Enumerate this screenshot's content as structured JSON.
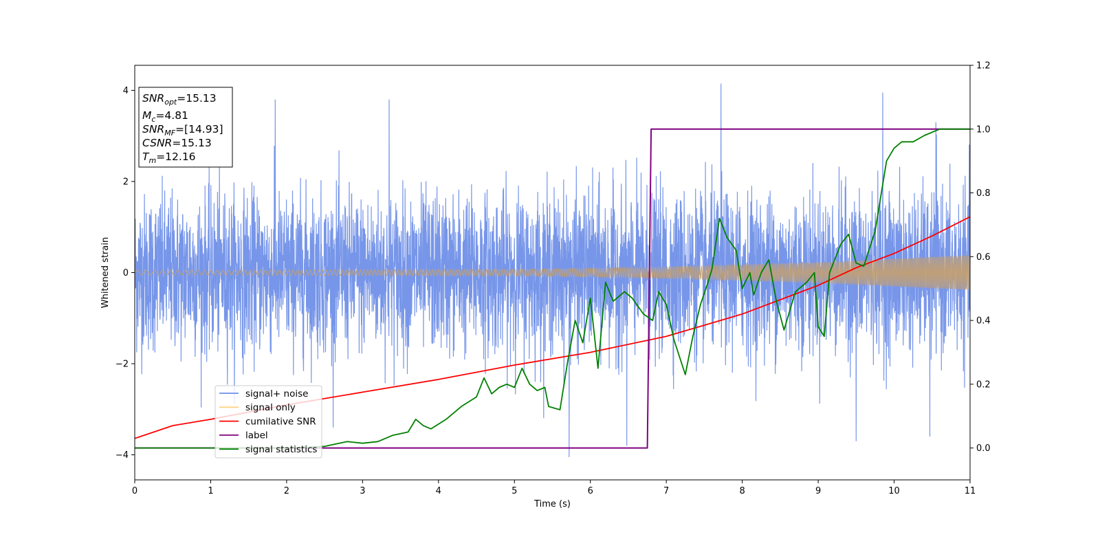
{
  "chart_data": {
    "type": "line",
    "xlabel": "Time (s)",
    "ylabel": "Whitened strain",
    "xlim": [
      0,
      11
    ],
    "ylim_left": [
      -4.55,
      4.55
    ],
    "ylim_right": [
      -0.1,
      1.2
    ],
    "x_ticks": [
      "0",
      "1",
      "2",
      "3",
      "4",
      "5",
      "6",
      "7",
      "8",
      "9",
      "10",
      "11"
    ],
    "y_left_ticks": [
      "−4",
      "−2",
      "0",
      "2",
      "4"
    ],
    "y_right_ticks": [
      "0.0",
      "0.2",
      "0.4",
      "0.6",
      "0.8",
      "1.0",
      "1.2"
    ],
    "legend_position": "lower-left",
    "legend": [
      {
        "name": "signal+ noise",
        "color": "#7090e8"
      },
      {
        "name": "signal only",
        "color": "#ffd382"
      },
      {
        "name": "cumilative SNR",
        "color": "#ff0000"
      },
      {
        "name": "label",
        "color": "#800080"
      },
      {
        "name": "signal statistics",
        "color": "#008000"
      }
    ],
    "info_box": {
      "snr_opt_main": "SNR",
      "snr_opt_sub": "opt",
      "snr_opt_val": "=15.13",
      "mc_main": "M",
      "mc_sub": "c",
      "mc_val": "=4.81",
      "snr_mf_main": "SNR",
      "snr_mf_sub": "MF",
      "snr_mf_val": "=[14.93]",
      "csnr_main": "CSNR",
      "csnr_val": "=15.13",
      "tm_main": "T",
      "tm_sub": "m",
      "tm_val": "=12.16"
    },
    "series": [
      {
        "name": "signal+ noise",
        "axis": "left",
        "description": "whitened noisy strain, roughly ±1.5 envelope with spikes to about ±4",
        "x_range": [
          0,
          11
        ],
        "approx_std": 0.85,
        "peak_positive": [
          [
            1.85,
            3.8
          ],
          [
            3.35,
            3.8
          ],
          [
            7.72,
            4.15
          ],
          [
            9.85,
            3.95
          ],
          [
            10.55,
            3.3
          ]
        ],
        "peak_negative": [
          [
            5.72,
            -4.05
          ],
          [
            6.48,
            -3.8
          ],
          [
            9.5,
            -3.7
          ],
          [
            10.47,
            -3.6
          ]
        ]
      },
      {
        "name": "signal only",
        "axis": "left",
        "description": "chirp with slowly growing amplitude",
        "amplitude_points": [
          [
            0,
            0.05
          ],
          [
            5,
            0.07
          ],
          [
            7,
            0.12
          ],
          [
            9,
            0.22
          ],
          [
            10,
            0.3
          ],
          [
            11,
            0.38
          ]
        ]
      },
      {
        "name": "cumilative SNR",
        "axis": "right",
        "points": [
          [
            0,
            0.03
          ],
          [
            0.5,
            0.07
          ],
          [
            1,
            0.09
          ],
          [
            2,
            0.135
          ],
          [
            3,
            0.175
          ],
          [
            4,
            0.215
          ],
          [
            5,
            0.26
          ],
          [
            6,
            0.3
          ],
          [
            7,
            0.35
          ],
          [
            8,
            0.42
          ],
          [
            9,
            0.51
          ],
          [
            9.5,
            0.565
          ],
          [
            10,
            0.61
          ],
          [
            10.5,
            0.665
          ],
          [
            11,
            0.725
          ]
        ]
      },
      {
        "name": "label",
        "axis": "right",
        "points": [
          [
            0,
            0.0
          ],
          [
            6.75,
            0.0
          ],
          [
            6.8,
            1.0
          ],
          [
            11,
            1.0
          ]
        ]
      },
      {
        "name": "signal statistics",
        "axis": "right",
        "points": [
          [
            0,
            0.0
          ],
          [
            2.0,
            0.0
          ],
          [
            2.5,
            0.005
          ],
          [
            2.8,
            0.02
          ],
          [
            3.0,
            0.015
          ],
          [
            3.2,
            0.02
          ],
          [
            3.4,
            0.04
          ],
          [
            3.6,
            0.05
          ],
          [
            3.7,
            0.09
          ],
          [
            3.8,
            0.07
          ],
          [
            3.9,
            0.06
          ],
          [
            4.1,
            0.09
          ],
          [
            4.3,
            0.13
          ],
          [
            4.5,
            0.16
          ],
          [
            4.6,
            0.22
          ],
          [
            4.7,
            0.17
          ],
          [
            4.8,
            0.19
          ],
          [
            4.9,
            0.2
          ],
          [
            5.0,
            0.19
          ],
          [
            5.1,
            0.25
          ],
          [
            5.2,
            0.2
          ],
          [
            5.3,
            0.18
          ],
          [
            5.4,
            0.19
          ],
          [
            5.45,
            0.13
          ],
          [
            5.6,
            0.12
          ],
          [
            5.7,
            0.27
          ],
          [
            5.8,
            0.4
          ],
          [
            5.9,
            0.33
          ],
          [
            6.0,
            0.47
          ],
          [
            6.1,
            0.25
          ],
          [
            6.2,
            0.52
          ],
          [
            6.3,
            0.46
          ],
          [
            6.45,
            0.49
          ],
          [
            6.55,
            0.47
          ],
          [
            6.7,
            0.42
          ],
          [
            6.82,
            0.4
          ],
          [
            6.9,
            0.49
          ],
          [
            7.0,
            0.45
          ],
          [
            7.1,
            0.34
          ],
          [
            7.25,
            0.23
          ],
          [
            7.35,
            0.35
          ],
          [
            7.45,
            0.45
          ],
          [
            7.55,
            0.52
          ],
          [
            7.6,
            0.56
          ],
          [
            7.7,
            0.72
          ],
          [
            7.8,
            0.66
          ],
          [
            7.92,
            0.62
          ],
          [
            8.0,
            0.5
          ],
          [
            8.1,
            0.55
          ],
          [
            8.15,
            0.48
          ],
          [
            8.25,
            0.55
          ],
          [
            8.35,
            0.59
          ],
          [
            8.45,
            0.46
          ],
          [
            8.55,
            0.37
          ],
          [
            8.7,
            0.49
          ],
          [
            8.85,
            0.52
          ],
          [
            8.95,
            0.55
          ],
          [
            9.0,
            0.38
          ],
          [
            9.08,
            0.35
          ],
          [
            9.15,
            0.55
          ],
          [
            9.3,
            0.64
          ],
          [
            9.4,
            0.67
          ],
          [
            9.5,
            0.58
          ],
          [
            9.6,
            0.57
          ],
          [
            9.75,
            0.68
          ],
          [
            9.9,
            0.9
          ],
          [
            10.0,
            0.94
          ],
          [
            10.1,
            0.96
          ],
          [
            10.25,
            0.96
          ],
          [
            10.4,
            0.98
          ],
          [
            10.6,
            1.0
          ],
          [
            11.0,
            1.0
          ]
        ]
      }
    ]
  }
}
